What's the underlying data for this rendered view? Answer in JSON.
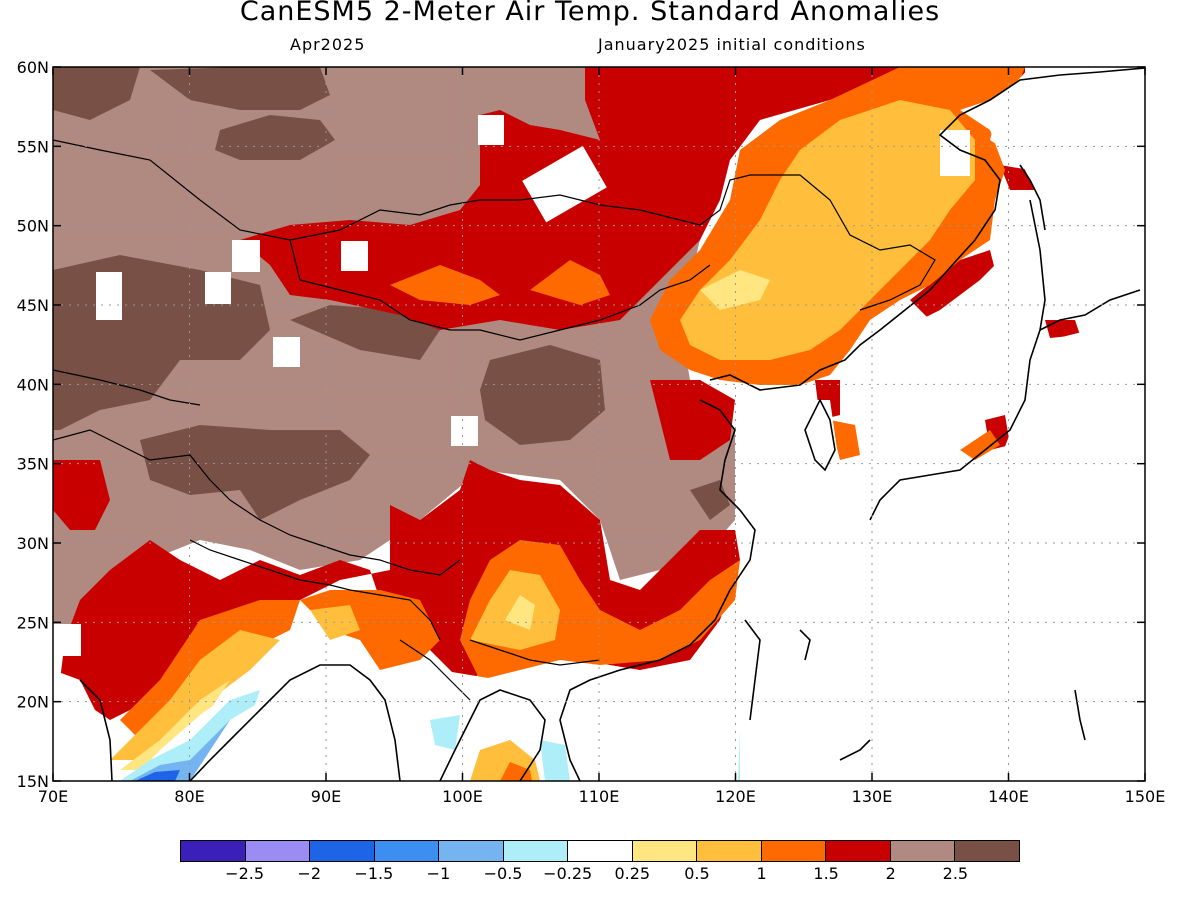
{
  "header": {
    "title": "CanESM5 2-Meter Air Temp. Standard Anomalies",
    "valid_month": "Apr2025",
    "initial_conditions": "January2025 initial conditions"
  },
  "map": {
    "lon_range": [
      70,
      150
    ],
    "lat_range": [
      15,
      60
    ],
    "lon_ticks": [
      "70E",
      "80E",
      "90E",
      "100E",
      "110E",
      "120E",
      "130E",
      "140E",
      "150E"
    ],
    "lat_ticks": [
      "15N",
      "20N",
      "25N",
      "30N",
      "35N",
      "40N",
      "45N",
      "50N",
      "55N",
      "60N"
    ],
    "gridlines": "dotted"
  },
  "colorbar": {
    "colors": [
      "#3a20b8",
      "#9a8cf2",
      "#1e64e6",
      "#3c8ef0",
      "#74b4f0",
      "#aeeef8",
      "#ffffff",
      "#ffe680",
      "#ffbe3c",
      "#ff6a00",
      "#c80000",
      "#b08a80",
      "#785046"
    ],
    "labels": [
      "-2.5",
      "-2",
      "-1.5",
      "-1",
      "-0.5",
      "-0.25",
      "0.25",
      "0.5",
      "1",
      "1.5",
      "2",
      "2.5"
    ]
  }
}
